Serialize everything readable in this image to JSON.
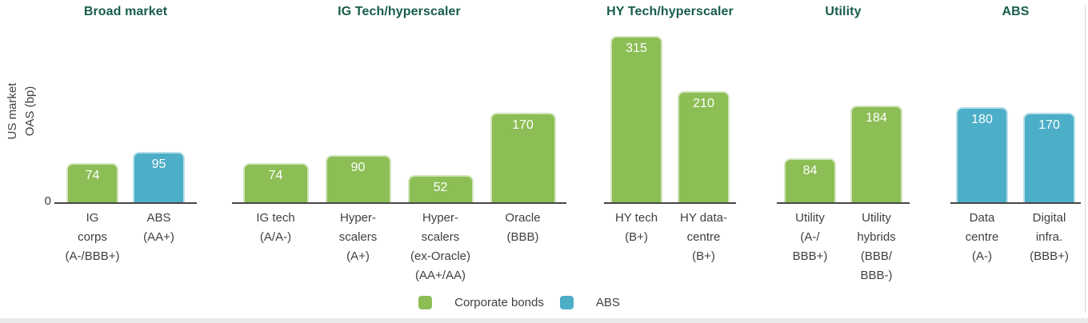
{
  "axis": {
    "y_label_lines": [
      "US market",
      "OAS (bp)"
    ],
    "zero_tick": "0"
  },
  "colors": {
    "corporate_bonds": "#8CBE55",
    "abs": "#4DAEC8",
    "group_title": "#175D4B",
    "axis_line": "#474747",
    "label_text": "#3F3F3F",
    "value_text": "#FFFFFF"
  },
  "legend": {
    "items": [
      {
        "label": "Corporate bonds",
        "series": "corporate_bonds"
      },
      {
        "label": "ABS",
        "series": "abs"
      }
    ]
  },
  "chart_data": {
    "type": "bar",
    "ylabel": "US market OAS (bp)",
    "unit": "bp",
    "ylim": [
      0,
      330
    ],
    "grid": false,
    "legend_position": "bottom",
    "legend_entries": [
      "Corporate bonds",
      "ABS"
    ],
    "groups": [
      {
        "title": "Broad market",
        "bars": [
          {
            "label": "IG corps (A-/BBB+)",
            "label_lines": [
              "IG",
              "corps",
              "(A-/BBB+)"
            ],
            "value": 74,
            "series": "corporate_bonds"
          },
          {
            "label": "ABS (AA+)",
            "label_lines": [
              "ABS",
              "(AA+)"
            ],
            "value": 95,
            "series": "abs"
          }
        ]
      },
      {
        "title": "IG Tech/hyperscaler",
        "bars": [
          {
            "label": "IG tech (A/A-)",
            "label_lines": [
              "IG tech",
              "(A/A-)"
            ],
            "value": 74,
            "series": "corporate_bonds"
          },
          {
            "label": "Hyper-scalers (A+)",
            "label_lines": [
              "Hyper-",
              "scalers",
              "(A+)"
            ],
            "value": 90,
            "series": "corporate_bonds"
          },
          {
            "label": "Hyper-scalers (ex-Oracle) (AA+/AA)",
            "label_lines": [
              "Hyper-",
              "scalers",
              "(ex-Oracle)",
              "(AA+/AA)"
            ],
            "value": 52,
            "series": "corporate_bonds"
          },
          {
            "label": "Oracle (BBB)",
            "label_lines": [
              "Oracle",
              "(BBB)"
            ],
            "value": 170,
            "series": "corporate_bonds"
          }
        ]
      },
      {
        "title": "HY Tech/hyperscaler",
        "bars": [
          {
            "label": "HY tech (B+)",
            "label_lines": [
              "HY tech",
              "(B+)"
            ],
            "value": 315,
            "series": "corporate_bonds"
          },
          {
            "label": "HY data-centre (B+)",
            "label_lines": [
              "HY data-",
              "centre",
              "(B+)"
            ],
            "value": 210,
            "series": "corporate_bonds"
          }
        ]
      },
      {
        "title": "Utility",
        "bars": [
          {
            "label": "Utility (A-/BBB+)",
            "label_lines": [
              "Utility",
              "(A-/",
              "BBB+)"
            ],
            "value": 84,
            "series": "corporate_bonds"
          },
          {
            "label": "Utility hybrids (BBB/BBB-)",
            "label_lines": [
              "Utility",
              "hybrids",
              "(BBB/",
              "BBB-)"
            ],
            "value": 184,
            "series": "corporate_bonds"
          }
        ]
      },
      {
        "title": "ABS",
        "bars": [
          {
            "label": "Data centre (A-)",
            "label_lines": [
              "Data",
              "centre",
              "(A-)"
            ],
            "value": 180,
            "series": "abs"
          },
          {
            "label": "Digital infra. (BBB+)",
            "label_lines": [
              "Digital",
              "infra.",
              "(BBB+)"
            ],
            "value": 170,
            "series": "abs"
          }
        ]
      }
    ]
  }
}
